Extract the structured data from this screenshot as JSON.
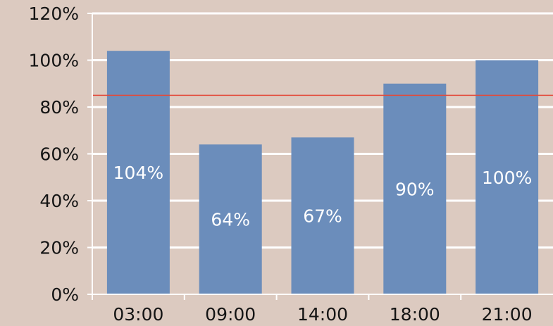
{
  "chart_data": {
    "type": "bar",
    "categories": [
      "03:00",
      "09:00",
      "14:00",
      "18:00",
      "21:00"
    ],
    "values": [
      104,
      64,
      67,
      90,
      100
    ],
    "data_labels": [
      "104%",
      "64%",
      "67%",
      "90%",
      "100%"
    ],
    "y_ticks": [
      0,
      20,
      40,
      60,
      80,
      100,
      120
    ],
    "y_tick_labels": [
      "0%",
      "20%",
      "40%",
      "60%",
      "80%",
      "100%",
      "120%"
    ],
    "ylim": [
      0,
      120
    ],
    "reference_line": {
      "value": 85,
      "color": "#e34a3a"
    },
    "grid": true,
    "title": "",
    "xlabel": "",
    "ylabel": "",
    "colors": {
      "background": "#dccac0",
      "bar": "#6b8dbb",
      "grid": "#ffffff",
      "axis": "#ffffff",
      "tick_text": "#141414",
      "data_label_text": "#ffffff"
    }
  }
}
